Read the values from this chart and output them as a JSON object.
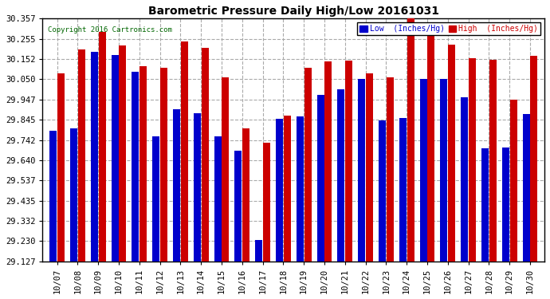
{
  "title": "Barometric Pressure Daily High/Low 20161031",
  "copyright": "Copyright 2016 Cartronics.com",
  "legend_low": "Low  (Inches/Hg)",
  "legend_high": "High  (Inches/Hg)",
  "low_color": "#0000cc",
  "high_color": "#cc0000",
  "background_color": "#ffffff",
  "ylim_min": 29.127,
  "ylim_max": 30.357,
  "yticks": [
    29.127,
    29.23,
    29.332,
    29.435,
    29.537,
    29.64,
    29.742,
    29.845,
    29.947,
    30.05,
    30.152,
    30.255,
    30.357
  ],
  "dates": [
    "10/07",
    "10/08",
    "10/09",
    "10/10",
    "10/11",
    "10/12",
    "10/13",
    "10/14",
    "10/15",
    "10/16",
    "10/17",
    "10/18",
    "10/19",
    "10/20",
    "10/21",
    "10/22",
    "10/23",
    "10/24",
    "10/25",
    "10/26",
    "10/27",
    "10/28",
    "10/29",
    "10/30"
  ],
  "low_values": [
    29.79,
    29.8,
    30.19,
    30.175,
    30.09,
    29.76,
    29.9,
    29.88,
    29.76,
    29.69,
    29.235,
    29.85,
    29.86,
    29.97,
    30.0,
    30.05,
    29.84,
    29.855,
    30.05,
    30.05,
    29.96,
    29.7,
    29.705,
    29.875
  ],
  "high_values": [
    30.08,
    30.2,
    30.29,
    30.22,
    30.115,
    30.11,
    30.24,
    30.21,
    30.06,
    29.8,
    29.73,
    29.865,
    30.11,
    30.14,
    30.145,
    30.08,
    30.06,
    30.357,
    30.27,
    30.225,
    30.155,
    30.15,
    29.945,
    30.17
  ]
}
